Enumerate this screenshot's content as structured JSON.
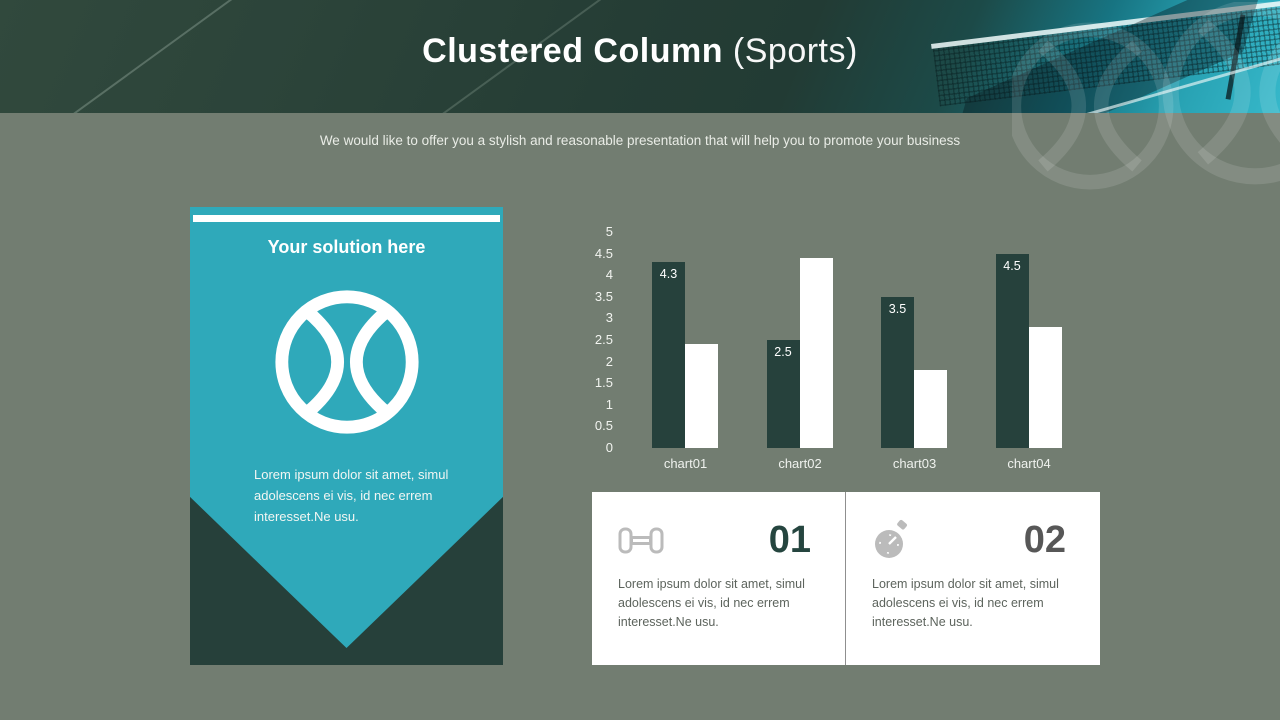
{
  "slide": {
    "title_bold": "Clustered Column",
    "title_light": " (Sports)",
    "subtitle": "We would like to offer you a stylish and reasonable presentation that will help you to promote your business",
    "background_color": "#727d71",
    "accent_teal": "#2fa9ba",
    "dark_green": "#26403a"
  },
  "solution_card": {
    "title": "Your solution here",
    "icon": "tennis-ball-icon",
    "body": "Lorem ipsum dolor sit amet, simul adolescens ei vis, id nec errem interesset.Ne usu."
  },
  "chart_data": {
    "type": "bar",
    "categories": [
      "chart01",
      "chart02",
      "chart03",
      "chart04"
    ],
    "series": [
      {
        "name": "series-dark",
        "color": "#26413c",
        "values": [
          4.3,
          2.5,
          3.5,
          4.5
        ],
        "labels": [
          "4.3",
          "2.5",
          "3.5",
          "4.5"
        ]
      },
      {
        "name": "series-white",
        "color": "#ffffff",
        "values": [
          2.4,
          4.4,
          1.8,
          2.8
        ],
        "labels": null
      }
    ],
    "title": "",
    "xlabel": "",
    "ylabel": "",
    "ylim": [
      0,
      5
    ],
    "ytick_step": 0.5,
    "yticks": [
      "5",
      "4.5",
      "4",
      "3.5",
      "3",
      "2.5",
      "2",
      "1.5",
      "1",
      "0.5",
      "0"
    ],
    "grid": false,
    "legend_position": "none"
  },
  "info_cards": [
    {
      "number": "01",
      "icon": "dumbbell-icon",
      "number_color": "#25453f",
      "text": "Lorem ipsum dolor sit amet, simul adolescens ei vis, id nec errem interesset.Ne usu."
    },
    {
      "number": "02",
      "icon": "stopwatch-icon",
      "number_color": "#575757",
      "text": "Lorem ipsum dolor sit amet, simul adolescens ei vis, id nec errem interesset.Ne usu."
    }
  ]
}
